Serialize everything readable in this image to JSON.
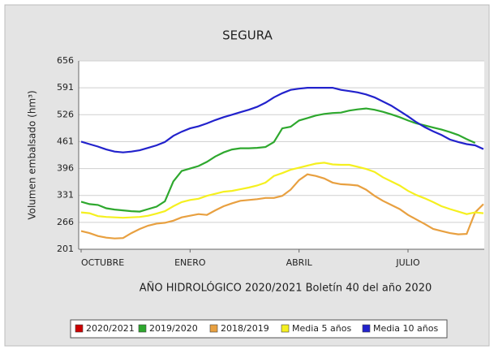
{
  "chart_data": {
    "type": "line",
    "title": "SEGURA",
    "x_label": "AÑO HIDROLÓGICO 2020/2021 Boletín 40 del año 2020",
    "y_label": "Volumen embalsado (hm³)",
    "categories": [
      "OCTUBRE",
      null,
      null,
      null,
      null,
      null,
      null,
      null,
      null,
      null,
      null,
      null,
      null,
      "ENERO",
      null,
      null,
      null,
      null,
      null,
      null,
      null,
      null,
      null,
      null,
      null,
      null,
      "ABRIL",
      null,
      null,
      null,
      null,
      null,
      null,
      null,
      null,
      null,
      null,
      null,
      null,
      "JULIO",
      null,
      null,
      null,
      null,
      null,
      null,
      null,
      null,
      null
    ],
    "ylim": [
      201,
      656
    ],
    "yticks": [
      201,
      266,
      331,
      396,
      461,
      526,
      591,
      656
    ],
    "grid": true,
    "legend": "bottom",
    "series": [
      {
        "name": "2020/2021",
        "color": "#cc0000",
        "values": [
          null,
          null,
          null,
          null,
          null,
          null,
          null,
          null,
          null,
          null,
          null,
          null,
          null,
          null,
          null,
          null,
          null,
          null,
          null,
          null,
          null,
          null,
          null,
          null,
          null,
          null,
          null,
          null,
          null,
          null,
          null,
          null,
          null,
          null,
          null,
          null,
          null,
          null,
          null,
          null,
          null,
          null,
          null,
          null,
          null,
          null,
          null,
          null,
          null
        ]
      },
      {
        "name": "2019/2020",
        "color": "#2ea82e",
        "values": [
          316,
          310,
          308,
          300,
          297,
          295,
          293,
          292,
          298,
          304,
          317,
          365,
          390,
          396,
          402,
          412,
          425,
          435,
          442,
          445,
          445,
          446,
          448,
          460,
          493,
          497,
          512,
          518,
          524,
          528,
          530,
          531,
          536,
          539,
          541,
          538,
          533,
          527,
          520,
          512,
          505,
          500,
          495,
          490,
          484,
          477,
          467,
          458,
          null
        ]
      },
      {
        "name": "2018/2019",
        "color": "#e8a040",
        "values": [
          245,
          240,
          233,
          229,
          227,
          228,
          240,
          250,
          258,
          263,
          265,
          270,
          278,
          282,
          286,
          284,
          295,
          305,
          312,
          318,
          320,
          322,
          325,
          325,
          330,
          345,
          368,
          382,
          378,
          372,
          362,
          358,
          357,
          355,
          345,
          330,
          318,
          308,
          298,
          284,
          273,
          262,
          250,
          245,
          240,
          237,
          238,
          290,
          310
        ]
      },
      {
        "name": "Media 5 años",
        "color": "#f5f020",
        "values": [
          290,
          288,
          281,
          279,
          278,
          277,
          278,
          279,
          282,
          287,
          293,
          305,
          315,
          320,
          323,
          330,
          335,
          340,
          342,
          346,
          350,
          355,
          362,
          378,
          385,
          393,
          398,
          403,
          408,
          410,
          406,
          405,
          405,
          400,
          395,
          388,
          375,
          365,
          355,
          342,
          332,
          324,
          315,
          305,
          298,
          292,
          286,
          290,
          288
        ]
      },
      {
        "name": "Media 10 años",
        "color": "#2222cc",
        "values": [
          461,
          455,
          449,
          442,
          437,
          435,
          437,
          440,
          446,
          452,
          460,
          475,
          485,
          493,
          498,
          505,
          513,
          520,
          526,
          532,
          538,
          545,
          555,
          568,
          578,
          586,
          589,
          591,
          591,
          591,
          591,
          586,
          583,
          580,
          575,
          568,
          558,
          548,
          535,
          522,
          508,
          496,
          486,
          477,
          466,
          460,
          455,
          452,
          443
        ]
      }
    ]
  }
}
